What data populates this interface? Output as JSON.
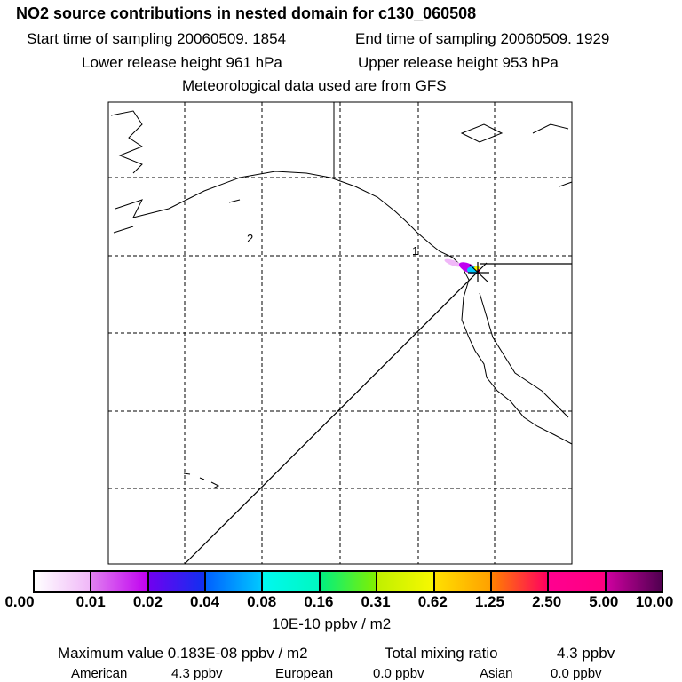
{
  "title": "NO2 source contributions in nested domain for c130_060508",
  "start_time": "Start time of sampling 20060509.  1854",
  "end_time": "End time of sampling 20060509.  1929",
  "lower_height": "Lower release height  961 hPa",
  "upper_height": "Upper release height  953 hPa",
  "met": "Meteorological data used are from GFS",
  "map_labels": {
    "one": "1",
    "two": "2"
  },
  "colorbar": {
    "ticks": [
      "0.00",
      "0.01",
      "0.02",
      "0.04",
      "0.08",
      "0.16",
      "0.31",
      "0.62",
      "1.25",
      "2.50",
      "5.00",
      "10.00"
    ],
    "unit": "10E-10 ppbv / m2",
    "colors": [
      [
        "#ffffff",
        "#f0b8f8"
      ],
      [
        "#e080f0",
        "#c000f0"
      ],
      [
        "#7000f0",
        "#1030f0"
      ],
      [
        "#0060ff",
        "#00c8ff"
      ],
      [
        "#00f8f0",
        "#00f8c0"
      ],
      [
        "#00f080",
        "#80f000"
      ],
      [
        "#c0f000",
        "#f8f800"
      ],
      [
        "#ffe000",
        "#ffa000"
      ],
      [
        "#ff8000",
        "#ff0060"
      ],
      [
        "#ff0090",
        "#ff0080"
      ],
      [
        "#d000a0",
        "#500050"
      ]
    ]
  },
  "summary": {
    "max_label": "Maximum value  0.183E-08 ppbv / m2",
    "total_label": "Total mixing ratio",
    "total_value": "4.3 ppbv",
    "american_label": "American",
    "american_value": "4.3 ppbv",
    "european_label": "European",
    "european_value": "0.0 ppbv",
    "asian_label": "Asian",
    "asian_value": "0.0 ppbv"
  }
}
